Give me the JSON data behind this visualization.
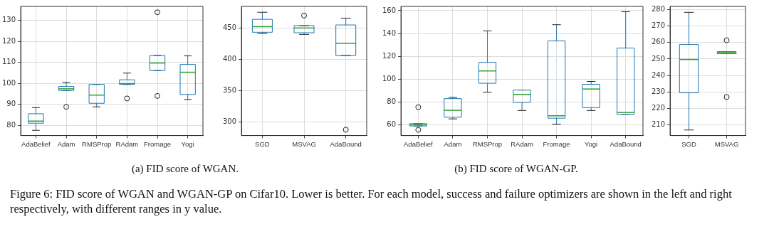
{
  "chart_data": [
    {
      "type": "box",
      "title": "(a) FID score of WGAN.",
      "categories": [
        "AdaBelief",
        "Adam",
        "RMSProp",
        "RAdam",
        "Fromage",
        "Yogi"
      ],
      "ylim": [
        75.1,
        136.7
      ],
      "yticks": [
        80,
        90,
        100,
        110,
        120,
        130
      ],
      "grid": true,
      "annotations": [
        "Figure 6: FID score of WGAN and WGAN-GP on Cifar10. Lower is better. For each model, success and failure optimizers are shown in the left and right respectively, with different ranges in y value."
      ],
      "series": [
        {
          "color": "#1f77b4",
          "boxes": [
            {
              "low": 77.6,
              "q1": 81,
              "median": 82,
              "q3": 85.5,
              "high": 88.4
            },
            {
              "low": 96.5,
              "q1": 96.6,
              "median": 97.4,
              "q3": 98.5,
              "high": 100.5,
              "outliers": [
                88.8
              ]
            },
            {
              "low": 88.8,
              "q1": 90.5,
              "median": 94.4,
              "q3": 99.5,
              "high": 99.5
            },
            {
              "low": 99.5,
              "q1": 99.5,
              "median": 99.9,
              "q3": 101.7,
              "high": 104.9,
              "outliers": [
                92.8
              ]
            },
            {
              "low": 106.1,
              "q1": 106.1,
              "median": 109.7,
              "q3": 113.3,
              "high": 113.3,
              "outliers": [
                133.9,
                94
              ]
            },
            {
              "low": 92.3,
              "q1": 94.7,
              "median": 105.3,
              "q3": 109,
              "high": 113.1
            }
          ]
        }
      ]
    },
    {
      "type": "box",
      "categories": [
        "SGD",
        "MSVAG",
        "AdaBound"
      ],
      "ylim": [
        277.7,
        485.1
      ],
      "yticks": [
        300,
        350,
        400,
        450
      ],
      "grid": true,
      "series": [
        {
          "color": "#1f77b4",
          "boxes": [
            {
              "low": 441.7,
              "q1": 443.6,
              "median": 452.6,
              "q3": 464.4,
              "high": 475.7
            },
            {
              "low": 440.2,
              "q1": 442.8,
              "median": 450.4,
              "q3": 454.2,
              "high": 454.2,
              "outliers": [
                470.4
              ]
            },
            {
              "low": 406.2,
              "q1": 406.2,
              "median": 425.8,
              "q3": 455.3,
              "high": 466.2,
              "outliers": [
                287.2
              ]
            }
          ]
        }
      ]
    },
    {
      "type": "box",
      "title": "(b) FID score of WGAN-GP.",
      "categories": [
        "AdaBelief",
        "Adam",
        "RMSProp",
        "RAdam",
        "Fromage",
        "Yogi",
        "AdaBound"
      ],
      "ylim": [
        50.8,
        163.7
      ],
      "yticks": [
        60,
        80,
        100,
        120,
        140,
        160
      ],
      "grid": true,
      "series": [
        {
          "color": "#1f77b4",
          "boxes": [
            {
              "low": 59.2,
              "q1": 59.2,
              "median": 60.2,
              "q3": 61.2,
              "high": 61.2,
              "outliers": [
                75.6,
                55.8
              ]
            },
            {
              "low": 65.4,
              "q1": 66.9,
              "median": 72.9,
              "q3": 83.1,
              "high": 84.2
            },
            {
              "low": 88.8,
              "q1": 96.5,
              "median": 107.3,
              "q3": 114.8,
              "high": 142.3
            },
            {
              "low": 72.7,
              "q1": 79.8,
              "median": 86.7,
              "q3": 90.6,
              "high": 90.6
            },
            {
              "low": 60.8,
              "q1": 66,
              "median": 68.1,
              "q3": 133.5,
              "high": 147.7
            },
            {
              "low": 72.7,
              "q1": 75.2,
              "median": 91.5,
              "q3": 95.6,
              "high": 98.1
            },
            {
              "low": 69.4,
              "q1": 69.4,
              "median": 71,
              "q3": 127.3,
              "high": 159
            }
          ]
        }
      ]
    },
    {
      "type": "box",
      "categories": [
        "SGD",
        "MSVAG"
      ],
      "ylim": [
        203.4,
        282
      ],
      "yticks": [
        210,
        220,
        230,
        240,
        250,
        260,
        270,
        280
      ],
      "grid": true,
      "series": [
        {
          "color": "#1f77b4",
          "boxes": [
            {
              "low": 206.8,
              "q1": 229.4,
              "median": 249.7,
              "q3": 258.8,
              "high": 278.4
            },
            {
              "low": 253.2,
              "q1": 253.2,
              "median": 253.9,
              "q3": 254.5,
              "high": 254.5,
              "outliers": [
                261.4,
                226.9
              ]
            }
          ]
        }
      ]
    }
  ]
}
